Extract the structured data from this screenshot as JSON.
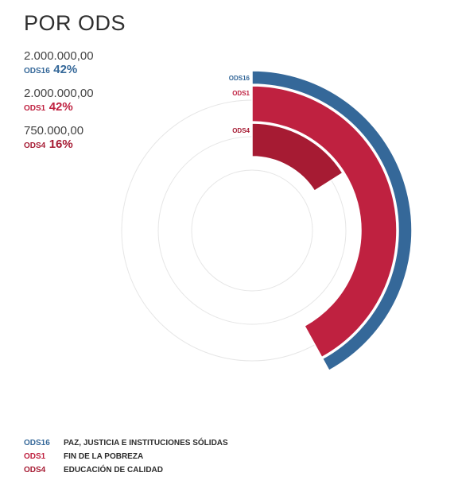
{
  "title": "POR ODS",
  "chart_data": {
    "type": "radial-bar",
    "series": [
      {
        "code": "ODS16",
        "name": "PAZ, JUSTICIA E INSTITUCIONES SÓLIDAS",
        "amount": "2.000.000,00",
        "value": 2000000,
        "percent": 42,
        "percent_label": "42%",
        "color": "#356899"
      },
      {
        "code": "ODS1",
        "name": "FIN DE LA POBREZA",
        "amount": "2.000.000,00",
        "value": 2000000,
        "percent": 42,
        "percent_label": "42%",
        "color": "#bf2140"
      },
      {
        "code": "ODS4",
        "name": "EDUCACIÓN DE CALIDAD",
        "amount": "750.000,00",
        "value": 750000,
        "percent": 16,
        "percent_label": "16%",
        "color": "#a61b33"
      }
    ]
  }
}
